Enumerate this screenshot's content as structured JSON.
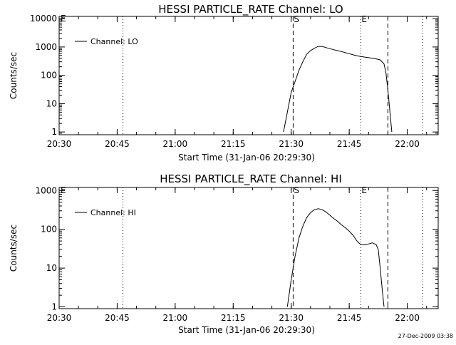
{
  "chart_data": [
    {
      "type": "line",
      "title": "HESSI PARTICLE_RATE Channel: LO",
      "xlabel": "Start Time (31-Jan-06 20:29:30)",
      "ylabel": "Counts/sec",
      "yscale": "log",
      "ylim": [
        0.8,
        12000
      ],
      "xlim": [
        "20:30",
        "22:08"
      ],
      "xticks": [
        "20:30",
        "20:45",
        "21:00",
        "21:15",
        "21:30",
        "21:45",
        "22:00"
      ],
      "yticks": [
        "1",
        "10",
        "100",
        "1000",
        "10000"
      ],
      "grid": false,
      "legend": "top-left",
      "series": [
        {
          "name": "Channel: LO",
          "x": [
            "21:28:00",
            "21:29:00",
            "21:30:00",
            "21:31:00",
            "21:32:00",
            "21:33:00",
            "21:34:00",
            "21:35:00",
            "21:36:00",
            "21:37:00",
            "21:38:00",
            "21:39:00",
            "21:40:00",
            "21:41:00",
            "21:42:00",
            "21:43:00",
            "21:44:00",
            "21:45:00",
            "21:46:00",
            "21:47:00",
            "21:48:00",
            "21:49:00",
            "21:50:00",
            "21:51:00",
            "21:52:00",
            "21:53:00",
            "21:54:00",
            "21:54:30",
            "21:55:00",
            "21:56:00"
          ],
          "values": [
            1,
            5,
            25,
            60,
            150,
            300,
            550,
            750,
            900,
            1050,
            1050,
            950,
            870,
            800,
            740,
            690,
            630,
            580,
            530,
            490,
            460,
            440,
            420,
            400,
            380,
            350,
            250,
            120,
            30,
            1
          ]
        }
      ],
      "vlines": [
        {
          "x": "20:46:30",
          "style": "dotted",
          "label": ""
        },
        {
          "x": "21:30:30",
          "style": "dashed",
          "label": "S"
        },
        {
          "x": "21:48:00",
          "style": "dotted",
          "label": "E"
        },
        {
          "x": "21:55:00",
          "style": "dashed",
          "label": ""
        },
        {
          "x": "22:04:00",
          "style": "dotted",
          "label": ""
        }
      ],
      "corner_marks": [
        "E"
      ]
    },
    {
      "type": "line",
      "title": "HESSI PARTICLE_RATE Channel: HI",
      "xlabel": "Start Time (31-Jan-06 20:29:30)",
      "ylabel": "Counts/sec",
      "yscale": "log",
      "ylim": [
        0.9,
        1200
      ],
      "xlim": [
        "20:30",
        "22:08"
      ],
      "xticks": [
        "20:30",
        "20:45",
        "21:00",
        "21:15",
        "21:30",
        "21:45",
        "22:00"
      ],
      "yticks": [
        "1",
        "10",
        "100",
        "1000"
      ],
      "grid": false,
      "legend": "top-left",
      "series": [
        {
          "name": "Channel: HI",
          "x": [
            "21:29:00",
            "21:30:00",
            "21:31:00",
            "21:32:00",
            "21:33:00",
            "21:34:00",
            "21:35:00",
            "21:36:00",
            "21:37:00",
            "21:38:00",
            "21:39:00",
            "21:40:00",
            "21:41:00",
            "21:42:00",
            "21:43:00",
            "21:44:00",
            "21:45:00",
            "21:46:00",
            "21:47:00",
            "21:48:00",
            "21:49:00",
            "21:50:00",
            "21:51:00",
            "21:52:00",
            "21:52:30",
            "21:53:00",
            "21:53:30",
            "21:54:00"
          ],
          "values": [
            1,
            5,
            20,
            60,
            120,
            200,
            270,
            320,
            340,
            320,
            280,
            230,
            190,
            160,
            130,
            110,
            90,
            70,
            50,
            40,
            40,
            42,
            45,
            40,
            30,
            10,
            3,
            1
          ]
        }
      ],
      "vlines": [
        {
          "x": "20:46:30",
          "style": "dotted",
          "label": ""
        },
        {
          "x": "21:30:30",
          "style": "dashed",
          "label": "S"
        },
        {
          "x": "21:48:00",
          "style": "dotted",
          "label": "E"
        },
        {
          "x": "21:55:00",
          "style": "dashed",
          "label": ""
        },
        {
          "x": "22:04:00",
          "style": "dotted",
          "label": ""
        }
      ],
      "corner_marks": [
        "E"
      ]
    }
  ],
  "footer": {
    "timestamp": "27-Dec-2009 03:38"
  }
}
